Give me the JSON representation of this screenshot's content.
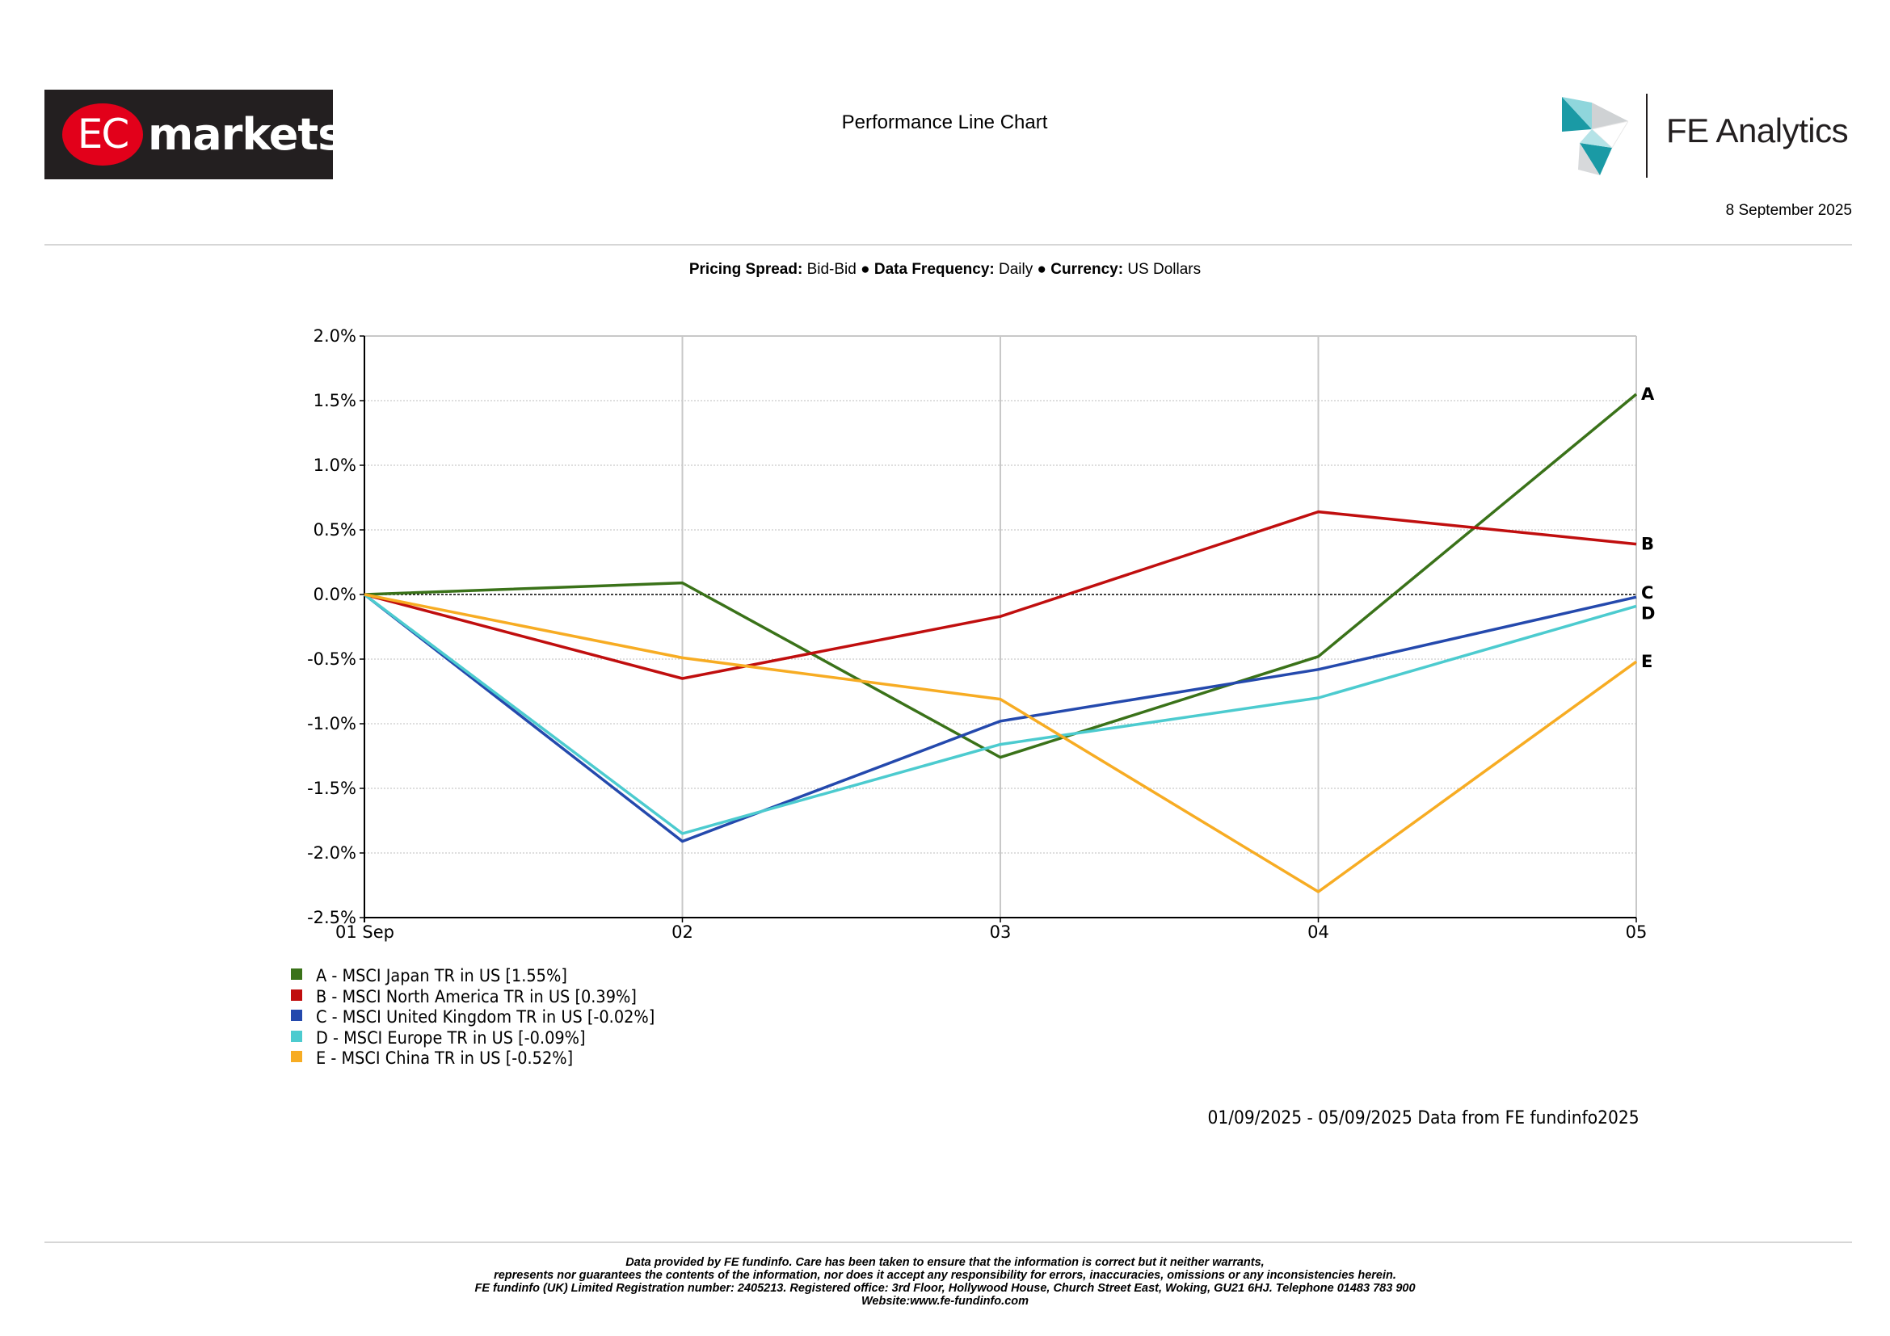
{
  "header": {
    "logo_text_left": "EC",
    "logo_text_right": "markets",
    "title": "Performance Line Chart",
    "fe_logo_text": "FE Analytics",
    "date": "8 September 2025"
  },
  "settings": {
    "pricing_label": "Pricing Spread:",
    "pricing_value": "Bid-Bid",
    "frequency_label": "Data Frequency:",
    "frequency_value": "Daily",
    "currency_label": "Currency:",
    "currency_value": "US Dollars",
    "separator": "●"
  },
  "chart_data": {
    "type": "line",
    "title": "",
    "xlabel": "",
    "ylabel": "",
    "categories": [
      "01 Sep",
      "02",
      "03",
      "04",
      "05"
    ],
    "ylim": [
      -2.5,
      2.0
    ],
    "yticks": [
      2.0,
      1.5,
      1.0,
      0.5,
      0.0,
      -0.5,
      -1.0,
      -1.5,
      -2.0,
      -2.5
    ],
    "ytick_labels": [
      "2.0%",
      "1.5%",
      "1.0%",
      "0.5%",
      "0.0%",
      "-0.5%",
      "-1.0%",
      "-1.5%",
      "-2.0%",
      "-2.5%"
    ],
    "grid": true,
    "series": [
      {
        "label": "A",
        "name": "A - MSCI Japan TR in US [1.55%]",
        "color": "#3a7219",
        "values": [
          0.0,
          0.09,
          -1.26,
          -0.48,
          1.55
        ]
      },
      {
        "label": "B",
        "name": "B - MSCI North America TR in US [0.39%]",
        "color": "#c00e0e",
        "values": [
          0.0,
          -0.65,
          -0.17,
          0.64,
          0.39
        ]
      },
      {
        "label": "C",
        "name": "C - MSCI United Kingdom TR in US [-0.02%]",
        "color": "#2449ad",
        "values": [
          0.0,
          -1.91,
          -0.98,
          -0.58,
          -0.02
        ]
      },
      {
        "label": "D",
        "name": "D - MSCI Europe TR in US [-0.09%]",
        "color": "#4ccbcf",
        "values": [
          0.0,
          -1.85,
          -1.16,
          -0.8,
          -0.09
        ]
      },
      {
        "label": "E",
        "name": "E - MSCI China TR in US [-0.52%]",
        "color": "#f7ac23",
        "values": [
          0.0,
          -0.49,
          -0.81,
          -2.3,
          -0.52
        ]
      }
    ]
  },
  "period_text": "01/09/2025 - 05/09/2025 Data from FE fundinfo2025",
  "disclaimer": {
    "line1": "Data provided by FE fundinfo. Care has been taken to ensure that the information is correct but it neither warrants,",
    "line2": "represents nor guarantees the contents of the information, nor does it accept any responsibility for errors, inaccuracies, omissions or any inconsistencies herein.",
    "line3": "FE fundinfo (UK) Limited Registration number: 2405213. Registered office: 3rd Floor, Hollywood House, Church Street East, Woking, GU21 6HJ. Telephone 01483 783 900",
    "line4": "Website:www.fe-fundinfo.com"
  }
}
